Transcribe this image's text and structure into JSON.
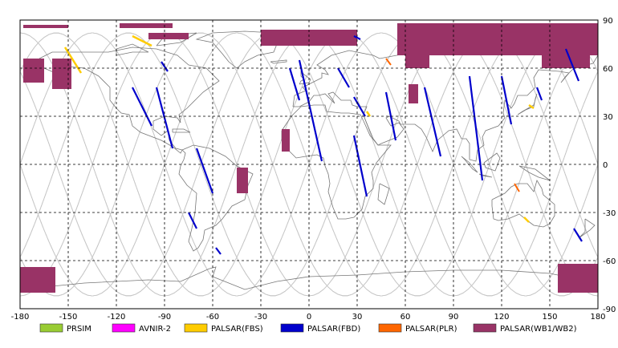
{
  "map": {
    "x_ticks": [
      "-180",
      "-150",
      "-120",
      "-90",
      "-60",
      "-30",
      "0",
      "30",
      "60",
      "90",
      "120",
      "150",
      "180"
    ],
    "y_ticks": [
      "90",
      "60",
      "30",
      "0",
      "-30",
      "-60",
      "-90"
    ],
    "grid_interval_degrees": 30,
    "colors": {
      "background": "#ffffff",
      "coastline": "#777777",
      "orbit_tracks": "#c8c8c8",
      "grid": "#000000"
    }
  },
  "legend": [
    {
      "label": "PRSIM",
      "color": "#99cc33"
    },
    {
      "label": "AVNIR-2",
      "color": "#ff00ff"
    },
    {
      "label": "PALSAR(FBS)",
      "color": "#ffcc00"
    },
    {
      "label": "PALSAR(FBD)",
      "color": "#0000cc"
    },
    {
      "label": "PALSAR(PLR)",
      "color": "#ff6600"
    },
    {
      "label": "PALSAR(WB1/WB2)",
      "color": "#993366"
    }
  ],
  "observations": {
    "wb": [
      {
        "lon": [
          -178,
          -150
        ],
        "lat": [
          87,
          85
        ]
      },
      {
        "lon": [
          -118,
          -85
        ],
        "lat": [
          88,
          85
        ]
      },
      {
        "lon": [
          -100,
          -75
        ],
        "lat": [
          82,
          78
        ]
      },
      {
        "lon": [
          -178,
          -165
        ],
        "lat": [
          66,
          51
        ]
      },
      {
        "lon": [
          -160,
          -148
        ],
        "lat": [
          66,
          47
        ]
      },
      {
        "lon": [
          -30,
          30
        ],
        "lat": [
          84,
          74
        ]
      },
      {
        "lon": [
          55,
          180
        ],
        "lat": [
          88,
          68
        ]
      },
      {
        "lon": [
          60,
          75
        ],
        "lat": [
          70,
          60
        ]
      },
      {
        "lon": [
          75,
          95
        ],
        "lat": [
          76,
          70
        ]
      },
      {
        "lon": [
          145,
          175
        ],
        "lat": [
          78,
          60
        ]
      },
      {
        "lon": [
          -45,
          -38
        ],
        "lat": [
          -2,
          -18
        ]
      },
      {
        "lon": [
          -17,
          -12
        ],
        "lat": [
          22,
          8
        ]
      },
      {
        "lon": [
          62,
          68
        ],
        "lat": [
          50,
          38
        ]
      },
      {
        "lon": [
          -180,
          -158
        ],
        "lat": [
          -64,
          -80
        ]
      },
      {
        "lon": [
          155,
          180
        ],
        "lat": [
          -62,
          -80
        ]
      }
    ],
    "fbd": [
      {
        "lon": [
          -6,
          8
        ],
        "lat": [
          65,
          2
        ]
      },
      {
        "lon": [
          -12,
          -6
        ],
        "lat": [
          60,
          40
        ]
      },
      {
        "lon": [
          18,
          25
        ],
        "lat": [
          60,
          48
        ]
      },
      {
        "lon": [
          28,
          32
        ],
        "lat": [
          80,
          78
        ]
      },
      {
        "lon": [
          28,
          35
        ],
        "lat": [
          42,
          30
        ]
      },
      {
        "lon": [
          48,
          54
        ],
        "lat": [
          45,
          15
        ]
      },
      {
        "lon": [
          28,
          36
        ],
        "lat": [
          18,
          -20
        ]
      },
      {
        "lon": [
          72,
          82
        ],
        "lat": [
          48,
          5
        ]
      },
      {
        "lon": [
          100,
          108
        ],
        "lat": [
          55,
          -10
        ]
      },
      {
        "lon": [
          120,
          126
        ],
        "lat": [
          55,
          25
        ]
      },
      {
        "lon": [
          160,
          168
        ],
        "lat": [
          72,
          52
        ]
      },
      {
        "lon": [
          -110,
          -98
        ],
        "lat": [
          48,
          24
        ]
      },
      {
        "lon": [
          -95,
          -85
        ],
        "lat": [
          48,
          10
        ]
      },
      {
        "lon": [
          -92,
          -88
        ],
        "lat": [
          64,
          58
        ]
      },
      {
        "lon": [
          -70,
          -60
        ],
        "lat": [
          10,
          -18
        ]
      },
      {
        "lon": [
          -75,
          -70
        ],
        "lat": [
          -30,
          -40
        ]
      },
      {
        "lon": [
          -58,
          -55
        ],
        "lat": [
          -52,
          -56
        ]
      },
      {
        "lon": [
          165,
          170
        ],
        "lat": [
          -40,
          -48
        ]
      },
      {
        "lon": [
          142,
          145
        ],
        "lat": [
          48,
          40
        ]
      }
    ],
    "fbs": [
      {
        "lon": [
          -110,
          -98
        ],
        "lat": [
          80,
          74
        ]
      },
      {
        "lon": [
          -152,
          -142
        ],
        "lat": [
          73,
          57
        ]
      },
      {
        "lon": [
          36,
          38
        ],
        "lat": [
          33,
          30
        ]
      },
      {
        "lon": [
          137,
          140
        ],
        "lat": [
          37,
          35
        ]
      },
      {
        "lon": [
          134,
          137
        ],
        "lat": [
          -33,
          -36
        ]
      }
    ],
    "plr": [
      {
        "lon": [
          48,
          51
        ],
        "lat": [
          66,
          62
        ]
      },
      {
        "lon": [
          128,
          131
        ],
        "lat": [
          -12,
          -17
        ]
      }
    ]
  }
}
